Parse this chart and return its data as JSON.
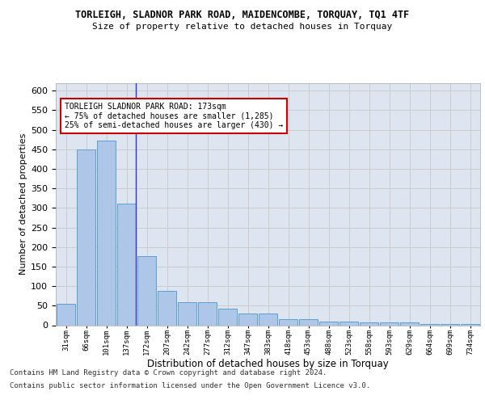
{
  "title_line1": "TORLEIGH, SLADNOR PARK ROAD, MAIDENCOMBE, TORQUAY, TQ1 4TF",
  "title_line2": "Size of property relative to detached houses in Torquay",
  "xlabel": "Distribution of detached houses by size in Torquay",
  "ylabel": "Number of detached properties",
  "categories": [
    "31sqm",
    "66sqm",
    "101sqm",
    "137sqm",
    "172sqm",
    "207sqm",
    "242sqm",
    "277sqm",
    "312sqm",
    "347sqm",
    "383sqm",
    "418sqm",
    "453sqm",
    "488sqm",
    "523sqm",
    "558sqm",
    "593sqm",
    "629sqm",
    "664sqm",
    "699sqm",
    "734sqm"
  ],
  "values": [
    55,
    450,
    472,
    311,
    176,
    88,
    58,
    58,
    43,
    31,
    31,
    15,
    15,
    10,
    10,
    7,
    7,
    8,
    4,
    4,
    4
  ],
  "bar_color": "#aec6e8",
  "bar_edge_color": "#5a9fd4",
  "vline_index": 3,
  "vline_color": "#3333cc",
  "annotation_text": "TORLEIGH SLADNOR PARK ROAD: 173sqm\n← 75% of detached houses are smaller (1,285)\n25% of semi-detached houses are larger (430) →",
  "annotation_box_color": "#ffffff",
  "annotation_box_edge": "#cc0000",
  "ylim": [
    0,
    620
  ],
  "yticks": [
    0,
    50,
    100,
    150,
    200,
    250,
    300,
    350,
    400,
    450,
    500,
    550,
    600
  ],
  "grid_color": "#cccccc",
  "bg_color": "#dde5f0",
  "footer_line1": "Contains HM Land Registry data © Crown copyright and database right 2024.",
  "footer_line2": "Contains public sector information licensed under the Open Government Licence v3.0."
}
